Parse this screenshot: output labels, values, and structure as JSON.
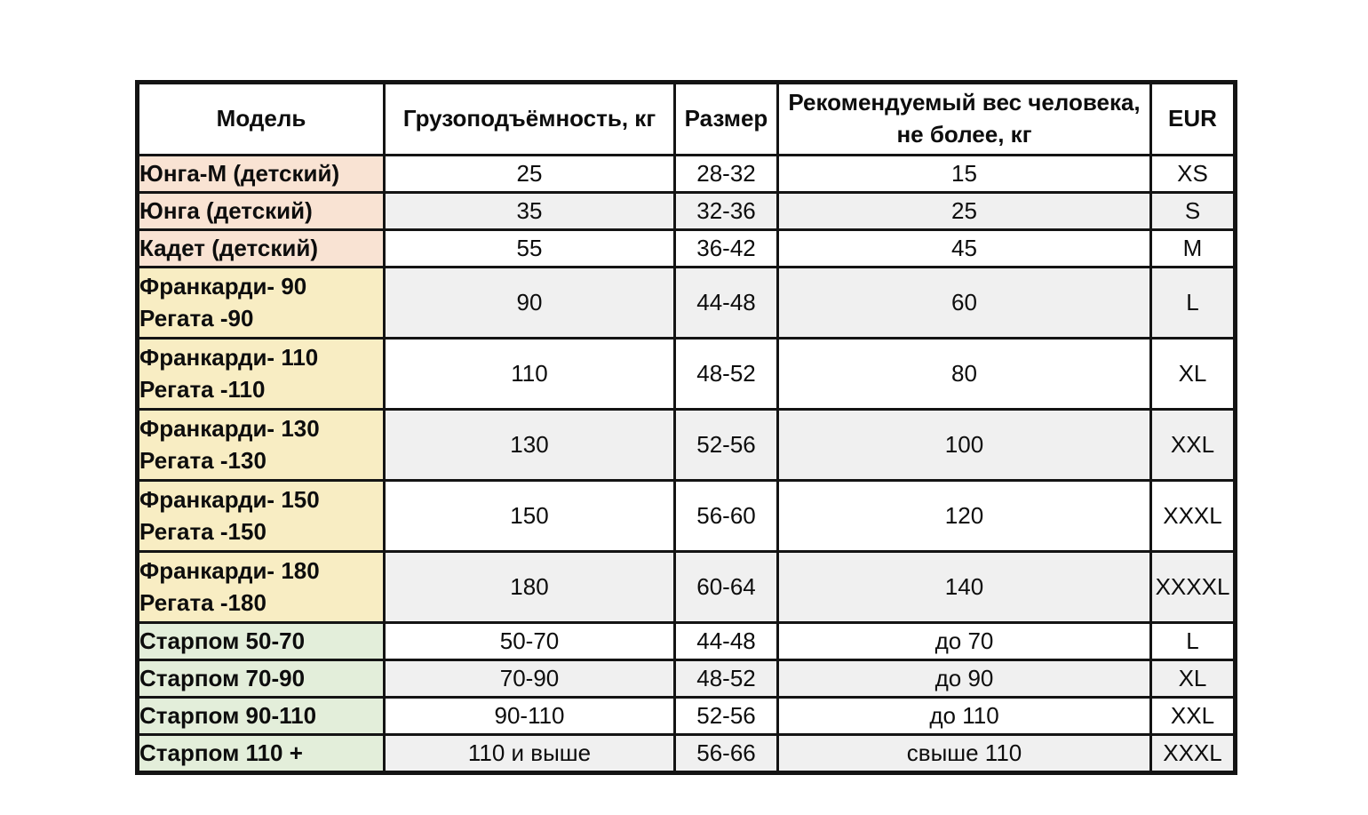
{
  "colors": {
    "group_children": "#f9e3d3",
    "group_frankardi": "#f8edc3",
    "group_starpom": "#e3eeda",
    "row_shade_even": "#f0f0f0",
    "row_shade_odd": "#ffffff",
    "border": "#141414",
    "text": "#0d0d0d"
  },
  "chart_data": {
    "type": "table",
    "title": "",
    "columns": [
      "Модель",
      "Грузоподъёмность, кг",
      "Размер",
      "Рекомендуемый вес человека,\nне более, кг",
      "EUR"
    ],
    "rows": [
      {
        "model": "Юнга-М (детский)",
        "capacity": "25",
        "size": "28-32",
        "max_weight": "15",
        "eur": "XS",
        "group": "children"
      },
      {
        "model": "Юнга (детский)",
        "capacity": "35",
        "size": "32-36",
        "max_weight": "25",
        "eur": "S",
        "group": "children"
      },
      {
        "model": "Кадет (детский)",
        "capacity": "55",
        "size": "36-42",
        "max_weight": "45",
        "eur": "M",
        "group": "children"
      },
      {
        "model": "Франкарди- 90\nРегата -90",
        "capacity": "90",
        "size": "44-48",
        "max_weight": "60",
        "eur": "L",
        "group": "frankardi"
      },
      {
        "model": "Франкарди- 110\nРегата -110",
        "capacity": "110",
        "size": "48-52",
        "max_weight": "80",
        "eur": "XL",
        "group": "frankardi"
      },
      {
        "model": "Франкарди- 130\nРегата -130",
        "capacity": "130",
        "size": "52-56",
        "max_weight": "100",
        "eur": "XXL",
        "group": "frankardi"
      },
      {
        "model": "Франкарди- 150\nРегата -150",
        "capacity": "150",
        "size": "56-60",
        "max_weight": "120",
        "eur": "XXXL",
        "group": "frankardi"
      },
      {
        "model": "Франкарди- 180\nРегата -180",
        "capacity": "180",
        "size": "60-64",
        "max_weight": "140",
        "eur": "XXXXL",
        "group": "frankardi"
      },
      {
        "model": "Старпом 50-70",
        "capacity": "50-70",
        "size": "44-48",
        "max_weight": "до 70",
        "eur": "L",
        "group": "starpom"
      },
      {
        "model": "Старпом 70-90",
        "capacity": "70-90",
        "size": "48-52",
        "max_weight": "до 90",
        "eur": "XL",
        "group": "starpom"
      },
      {
        "model": "Старпом 90-110",
        "capacity": "90-110",
        "size": "52-56",
        "max_weight": "до 110",
        "eur": "XXL",
        "group": "starpom"
      },
      {
        "model": "Старпом 110 +",
        "capacity": "110 и выше",
        "size": "56-66",
        "max_weight": "свыше 110",
        "eur": "XXXL",
        "group": "starpom"
      }
    ]
  }
}
